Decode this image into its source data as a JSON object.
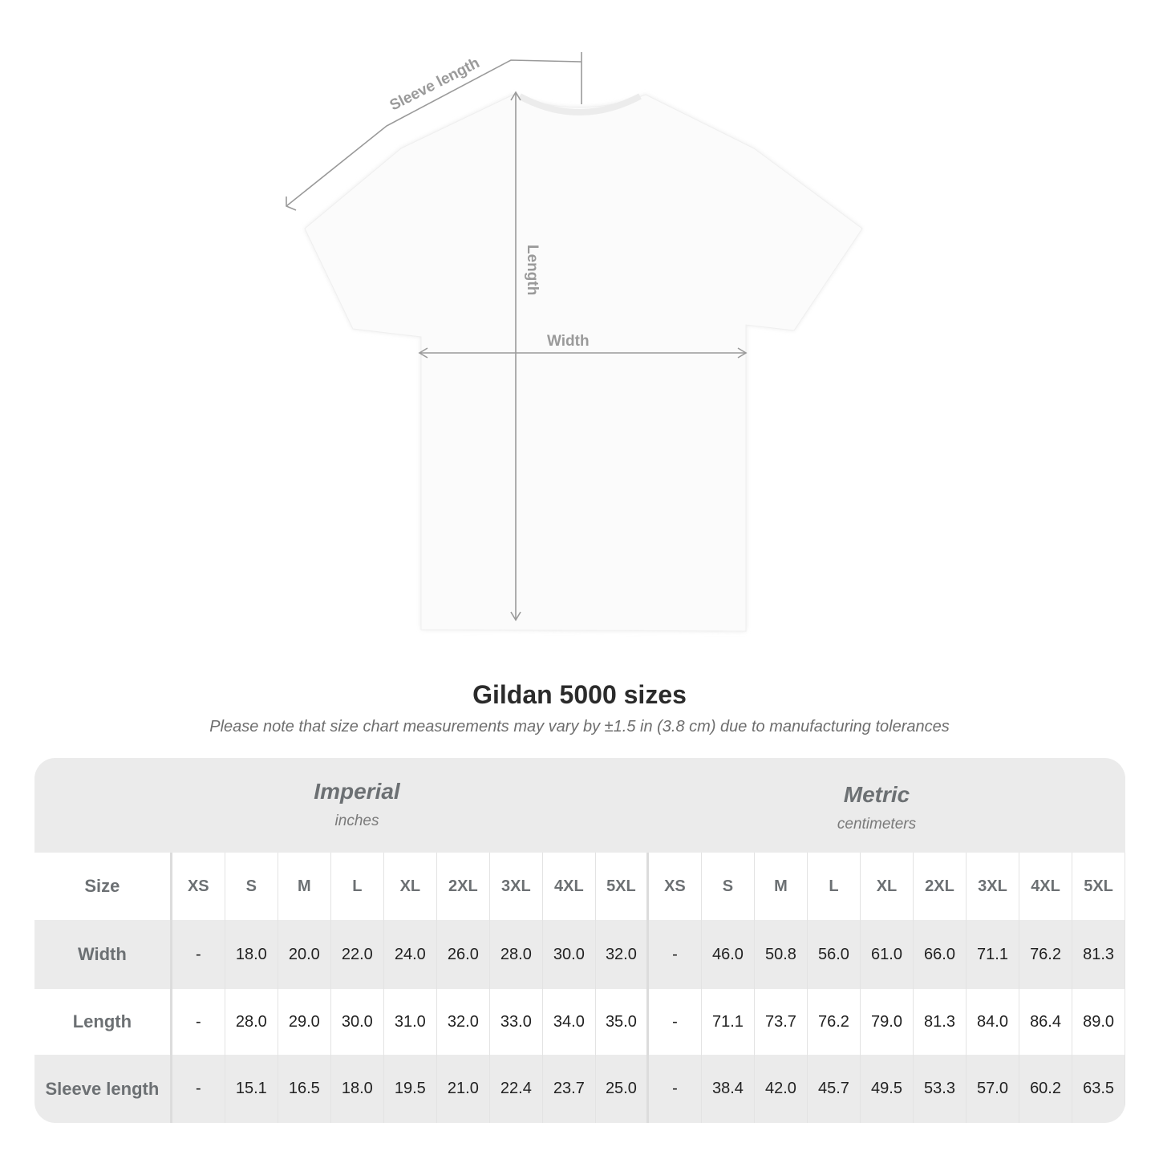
{
  "diagram": {
    "labels": {
      "sleeve": "Sleeve length",
      "length": "Length",
      "width": "Width"
    }
  },
  "title": "Gildan 5000 sizes",
  "note": "Please note that size chart measurements may vary by ±1.5 in (3.8 cm) due to manufacturing tolerances",
  "table": {
    "imperial": {
      "name": "Imperial",
      "unit": "inches"
    },
    "metric": {
      "name": "Metric",
      "unit": "centimeters"
    },
    "size_label": "Size",
    "sizes": [
      "XS",
      "S",
      "M",
      "L",
      "XL",
      "2XL",
      "3XL",
      "4XL",
      "5XL"
    ],
    "rows": [
      {
        "label": "Width",
        "imperial": [
          "-",
          "18.0",
          "20.0",
          "22.0",
          "24.0",
          "26.0",
          "28.0",
          "30.0",
          "32.0"
        ],
        "metric": [
          "-",
          "46.0",
          "50.8",
          "56.0",
          "61.0",
          "66.0",
          "71.1",
          "76.2",
          "81.3"
        ]
      },
      {
        "label": "Length",
        "imperial": [
          "-",
          "28.0",
          "29.0",
          "30.0",
          "31.0",
          "32.0",
          "33.0",
          "34.0",
          "35.0"
        ],
        "metric": [
          "-",
          "71.1",
          "73.7",
          "76.2",
          "79.0",
          "81.3",
          "84.0",
          "86.4",
          "89.0"
        ]
      },
      {
        "label": "Sleeve length",
        "imperial": [
          "-",
          "15.1",
          "16.5",
          "18.0",
          "19.5",
          "21.0",
          "22.4",
          "23.7",
          "25.0"
        ],
        "metric": [
          "-",
          "38.4",
          "42.0",
          "45.7",
          "49.5",
          "53.3",
          "57.0",
          "60.2",
          "63.5"
        ]
      }
    ]
  },
  "colors": {
    "band": "#ebebeb",
    "header_text": "#6c7073",
    "measure_line": "#9a9a9a"
  }
}
